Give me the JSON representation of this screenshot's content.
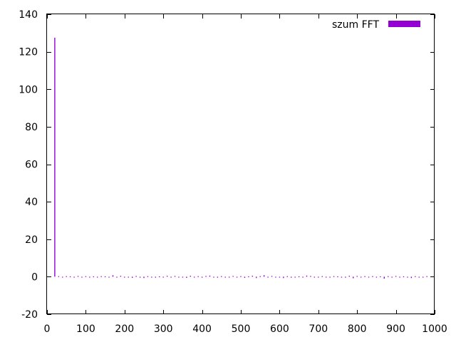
{
  "chart_data": {
    "type": "bar",
    "title": "",
    "xlabel": "",
    "ylabel": "",
    "xlim": [
      0,
      1000
    ],
    "ylim": [
      -20,
      140
    ],
    "xticks": [
      0,
      100,
      200,
      300,
      400,
      500,
      600,
      700,
      800,
      900,
      1000
    ],
    "yticks": [
      -20,
      0,
      20,
      40,
      60,
      80,
      100,
      120,
      140
    ],
    "xtick_labels": [
      "0",
      "100",
      "200",
      "300",
      "400",
      "500",
      "600",
      "700",
      "800",
      "900",
      "1000"
    ],
    "ytick_labels": [
      "-20",
      "0",
      "20",
      "40",
      "60",
      "80",
      "100",
      "120",
      "140"
    ],
    "grid": false,
    "legend_position": "top-right",
    "series": [
      {
        "name": "szum FFT",
        "color": "#9400d3",
        "x": [
          20,
          30,
          40,
          50,
          60,
          70,
          80,
          90,
          100,
          110,
          120,
          130,
          140,
          150,
          160,
          170,
          180,
          190,
          200,
          210,
          220,
          230,
          240,
          250,
          260,
          270,
          280,
          290,
          300,
          310,
          320,
          330,
          340,
          350,
          360,
          370,
          380,
          390,
          400,
          410,
          420,
          430,
          440,
          450,
          460,
          470,
          480,
          490,
          500,
          510,
          520,
          530,
          540,
          550,
          560,
          570,
          580,
          590,
          600,
          610,
          620,
          630,
          640,
          650,
          660,
          670,
          680,
          690,
          700,
          710,
          720,
          730,
          740,
          750,
          760,
          770,
          780,
          790,
          800,
          810,
          820,
          830,
          840,
          850,
          860,
          870,
          880,
          890,
          900,
          910,
          920,
          930,
          940,
          950,
          960,
          970,
          980
        ],
        "values": [
          127.5,
          0.3,
          -0.2,
          0.3,
          0.2,
          -0.3,
          0.4,
          -0.2,
          0.3,
          -0.4,
          0.2,
          -0.3,
          0.3,
          0.2,
          -0.4,
          0.8,
          -0.3,
          0.5,
          -0.4,
          -0.3,
          -0.6,
          0.4,
          -0.5,
          -0.7,
          0.3,
          -0.4,
          -0.5,
          0.2,
          -0.4,
          0.5,
          -0.3,
          0.4,
          -0.3,
          -0.3,
          -0.6,
          0.5,
          -0.4,
          0.3,
          -0.5,
          0.4,
          0.6,
          -0.3,
          -0.5,
          0.3,
          -0.2,
          -0.3,
          0.4,
          -0.3,
          0.3,
          -0.6,
          0.2,
          0.5,
          -0.7,
          0.3,
          0.8,
          -0.3,
          0.4,
          -0.2,
          -0.4,
          -0.7,
          0.3,
          -0.5,
          -0.3,
          0.2,
          -0.4,
          0.6,
          0.4,
          -0.3,
          -0.4,
          0.3,
          -0.3,
          -0.4,
          0.3,
          0.2,
          -0.3,
          -0.5,
          0.5,
          -0.8,
          0.4,
          -0.3,
          0.3,
          -0.4,
          0.3,
          -0.3,
          0.2,
          -1.0,
          0.3,
          -0.3,
          0.4,
          -0.3,
          0.2,
          -0.2,
          -0.7,
          0.3,
          -0.3,
          -0.4,
          0.3
        ]
      }
    ]
  }
}
